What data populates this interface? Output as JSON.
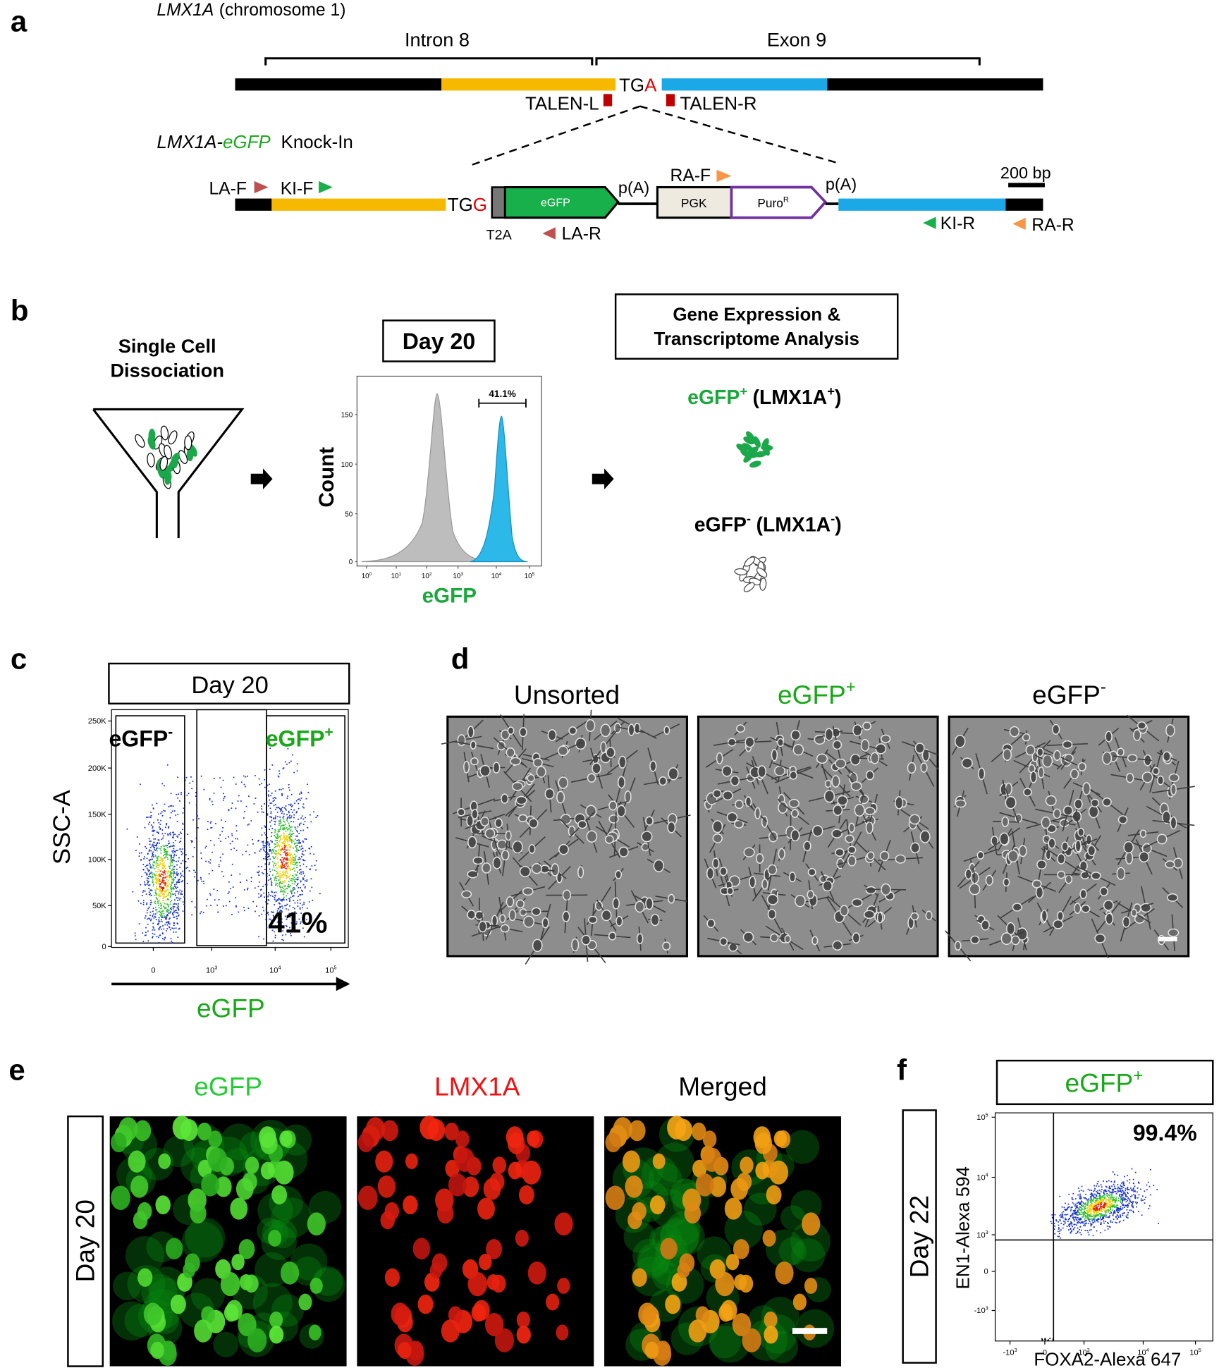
{
  "panel_a": {
    "label": "a",
    "gene": "LMX1A",
    "chromosome": "(chromosome 1)",
    "intron": "Intron 8",
    "exon": "Exon 9",
    "stop_tg": "TG",
    "stop_a": "A",
    "talen_l": "TALEN-L",
    "talen_r": "TALEN-R",
    "knockin": {
      "gene": "LMX1A",
      "sep": "-",
      "reporter": "eGFP",
      "suffix": "Knock-In"
    },
    "la_f": "LA-F",
    "ki_f": "KI-F",
    "junction_tg": "TG",
    "junction_g": "G",
    "egfp_box": "eGFP",
    "t2a": "T2A",
    "la_r": "LA-R",
    "pa_1": "p(A)",
    "pgk": "PGK",
    "puro": "Puro",
    "puro_sup": "R",
    "ra_f": "RA-F",
    "pa_2": "p(A)",
    "scale": "200 bp",
    "ki_r": "KI-R",
    "ra_r": "RA-R"
  },
  "panel_b": {
    "label": "b",
    "dissociation": [
      "Single Cell",
      "Dissociation"
    ],
    "day": "Day 20",
    "gate": "41.1%",
    "y_title": "Count",
    "y_ticks": [
      "0",
      "50",
      "100",
      "150"
    ],
    "x_ticks": [
      {
        "base": "10",
        "exp": "0"
      },
      {
        "base": "10",
        "exp": "1"
      },
      {
        "base": "10",
        "exp": "2"
      },
      {
        "base": "10",
        "exp": "3"
      },
      {
        "base": "10",
        "exp": "4"
      },
      {
        "base": "10",
        "exp": "5"
      }
    ],
    "x_title": "eGFP",
    "analysis": [
      "Gene Expression &",
      "Transcriptome Analysis"
    ],
    "positive": {
      "name": "eGFP",
      "sign": "+",
      "marker": "(LMX1A",
      "marker_sign": "+",
      "close": ")"
    },
    "negative": {
      "name": "eGFP",
      "sign": "-",
      "marker": "(LMX1A",
      "marker_sign": "-",
      "close": ")"
    }
  },
  "panel_c": {
    "label": "c",
    "day": "Day 20",
    "y_title": "SSC-A",
    "y_ticks": [
      "0",
      "50K",
      "100K",
      "150K",
      "200K",
      "250K"
    ],
    "x_ticks": [
      "0",
      {
        "base": "10",
        "exp": "3"
      },
      {
        "base": "10",
        "exp": "4"
      },
      {
        "base": "10",
        "exp": "5"
      }
    ],
    "x_title": "eGFP",
    "gate_negative": {
      "name": "eGFP",
      "sign": "-"
    },
    "gate_positive": {
      "name": "eGFP",
      "sign": "+"
    },
    "percent": "41%"
  },
  "panel_d": {
    "label": "d",
    "unsorted": "Unsorted",
    "positive": {
      "name": "eGFP",
      "sign": "+"
    },
    "negative": {
      "name": "eGFP",
      "sign": "-"
    }
  },
  "panel_e": {
    "label": "e",
    "egfp": "eGFP",
    "lmx1a": "LMX1A",
    "merged": "Merged",
    "day": "Day 20"
  },
  "panel_f": {
    "label": "f",
    "population": {
      "name": "eGFP",
      "sign": "+"
    },
    "day": "Day 22",
    "y_title": "EN1-Alexa 594",
    "x_title": "FOXA2-Alexa 647",
    "percent": "99.4%",
    "y_ticks": [
      {
        "base": "-10",
        "exp": "3"
      },
      "0",
      {
        "base": "10",
        "exp": "3"
      },
      {
        "base": "10",
        "exp": "4"
      },
      {
        "base": "10",
        "exp": "5"
      }
    ],
    "x_ticks": [
      {
        "base": "-10",
        "exp": "3"
      },
      "0",
      {
        "base": "10",
        "exp": "3"
      },
      {
        "base": "10",
        "exp": "4"
      },
      {
        "base": "10",
        "exp": "5"
      }
    ]
  }
}
